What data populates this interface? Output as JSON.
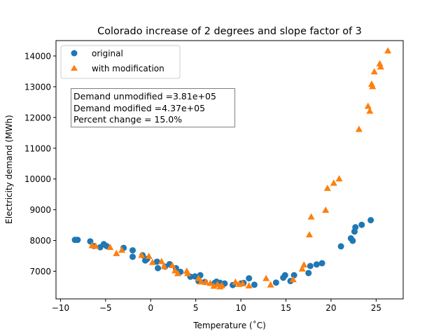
{
  "chart_data": {
    "type": "scatter",
    "title": "Colorado increase of 2 degrees and slope factor of 3",
    "xlabel": "Temperature (˚C)",
    "ylabel": "Electricity demand (MWh)",
    "xlim": [
      -10.5,
      28
    ],
    "ylim": [
      6100,
      14500
    ],
    "xticks": [
      -10,
      -5,
      0,
      5,
      10,
      15,
      20,
      25
    ],
    "yticks": [
      7000,
      8000,
      9000,
      10000,
      11000,
      12000,
      13000,
      14000
    ],
    "legend_position": "top-left",
    "annotation": [
      "Demand unmodified =3.81e+05",
      "Demand modified =4.37e+05",
      "Percent change = 15.0%"
    ],
    "series": [
      {
        "name": "original",
        "marker": "circle",
        "color": "#1f77b4",
        "points": [
          [
            -8.4,
            8020
          ],
          [
            -8.1,
            8020
          ],
          [
            -6.7,
            7970
          ],
          [
            -6.3,
            7820
          ],
          [
            -5.6,
            7780
          ],
          [
            -5.2,
            7880
          ],
          [
            -4.9,
            7820
          ],
          [
            -3.0,
            7760
          ],
          [
            -2.0,
            7680
          ],
          [
            -2.0,
            7470
          ],
          [
            -0.9,
            7520
          ],
          [
            -0.6,
            7350
          ],
          [
            -0.4,
            7400
          ],
          [
            0.7,
            7310
          ],
          [
            0.8,
            7100
          ],
          [
            1.6,
            7150
          ],
          [
            2.1,
            7230
          ],
          [
            2.8,
            7100
          ],
          [
            3.3,
            6980
          ],
          [
            4.4,
            6820
          ],
          [
            4.9,
            6830
          ],
          [
            5.3,
            6680
          ],
          [
            5.5,
            6870
          ],
          [
            6.0,
            6650
          ],
          [
            7.1,
            6620
          ],
          [
            7.3,
            6660
          ],
          [
            7.7,
            6620
          ],
          [
            8.2,
            6600
          ],
          [
            9.1,
            6550
          ],
          [
            10.0,
            6600
          ],
          [
            10.3,
            6620
          ],
          [
            10.9,
            6770
          ],
          [
            11.5,
            6560
          ],
          [
            13.9,
            6630
          ],
          [
            14.7,
            6790
          ],
          [
            14.9,
            6870
          ],
          [
            15.5,
            6680
          ],
          [
            15.9,
            6870
          ],
          [
            17.5,
            6940
          ],
          [
            17.7,
            7170
          ],
          [
            18.4,
            7220
          ],
          [
            19.0,
            7260
          ],
          [
            21.1,
            7810
          ],
          [
            22.2,
            8070
          ],
          [
            22.4,
            7990
          ],
          [
            22.6,
            8290
          ],
          [
            22.7,
            8430
          ],
          [
            23.4,
            8510
          ],
          [
            24.4,
            8660
          ]
        ]
      },
      {
        "name": "with modification",
        "marker": "triangle",
        "color": "#ff7f0e",
        "points": [
          [
            -6.5,
            7830
          ],
          [
            -6.1,
            7810
          ],
          [
            -4.5,
            7770
          ],
          [
            -3.8,
            7570
          ],
          [
            -3.2,
            7680
          ],
          [
            -1.0,
            7510
          ],
          [
            -0.2,
            7480
          ],
          [
            0.2,
            7280
          ],
          [
            1.2,
            7310
          ],
          [
            1.5,
            7150
          ],
          [
            2.4,
            7180
          ],
          [
            2.7,
            7010
          ],
          [
            3.0,
            6920
          ],
          [
            4.0,
            7000
          ],
          [
            4.1,
            6920
          ],
          [
            5.3,
            6760
          ],
          [
            5.6,
            6650
          ],
          [
            6.1,
            6640
          ],
          [
            6.6,
            6600
          ],
          [
            7.0,
            6510
          ],
          [
            7.4,
            6560
          ],
          [
            7.7,
            6490
          ],
          [
            7.9,
            6530
          ],
          [
            9.4,
            6640
          ],
          [
            9.8,
            6570
          ],
          [
            10.2,
            6590
          ],
          [
            10.9,
            6520
          ],
          [
            12.8,
            6760
          ],
          [
            13.3,
            6550
          ],
          [
            15.8,
            6720
          ],
          [
            16.8,
            7070
          ],
          [
            17.0,
            7200
          ],
          [
            17.6,
            8180
          ],
          [
            17.8,
            8760
          ],
          [
            19.4,
            8980
          ],
          [
            19.6,
            9690
          ],
          [
            20.3,
            9860
          ],
          [
            20.9,
            10000
          ],
          [
            23.1,
            11610
          ],
          [
            24.1,
            12360
          ],
          [
            24.3,
            12200
          ],
          [
            24.5,
            13080
          ],
          [
            24.6,
            13000
          ],
          [
            24.8,
            13480
          ],
          [
            25.4,
            13740
          ],
          [
            25.5,
            13640
          ],
          [
            26.3,
            14160
          ]
        ]
      }
    ]
  }
}
